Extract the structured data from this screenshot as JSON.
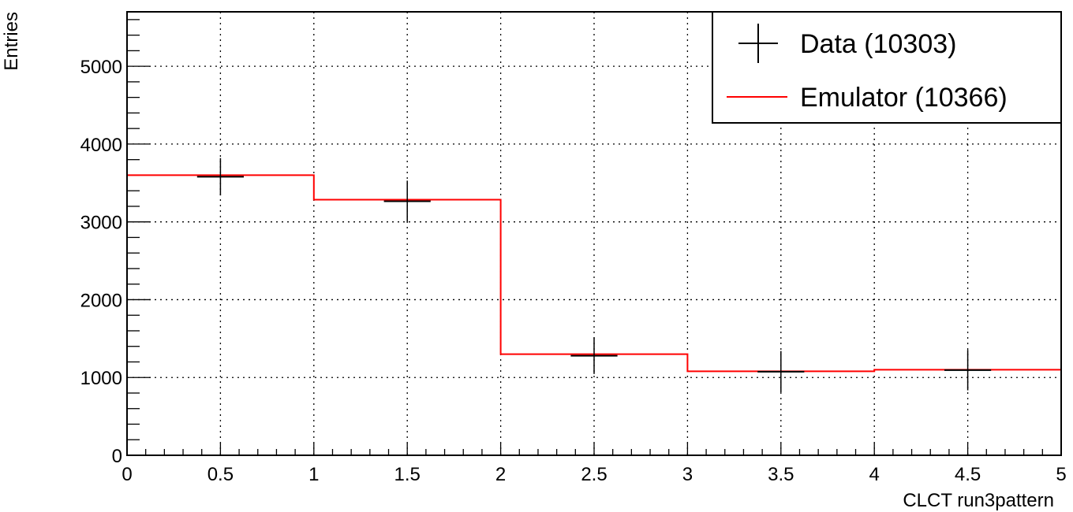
{
  "chart_data": {
    "type": "histogram",
    "xlabel": "CLCT run3pattern",
    "ylabel": "Entries",
    "xlim": [
      0,
      5
    ],
    "ylim": [
      0,
      5700
    ],
    "grid": true,
    "legend_position": "top-right",
    "x_ticks": [
      0,
      0.5,
      1,
      1.5,
      2,
      2.5,
      3,
      3.5,
      4,
      4.5,
      5
    ],
    "x_tick_labels": [
      "0",
      "0.5",
      "1",
      "1.5",
      "2",
      "2.5",
      "3",
      "3.5",
      "4",
      "4.5",
      "5"
    ],
    "y_ticks": [
      0,
      1000,
      2000,
      3000,
      4000,
      5000
    ],
    "y_tick_labels": [
      "0",
      "1000",
      "2000",
      "3000",
      "4000",
      "5000"
    ],
    "bin_edges": [
      0,
      1,
      2,
      3,
      4,
      5
    ],
    "series": [
      {
        "name": "Data (10303)",
        "style": "points-with-errors",
        "color": "#000000",
        "x": [
          0.5,
          1.5,
          2.5,
          3.5,
          4.5
        ],
        "values": [
          3580,
          3265,
          1280,
          1075,
          1095
        ],
        "errors": [
          240,
          265,
          235,
          265,
          260
        ]
      },
      {
        "name": "Emulator (10366)",
        "style": "step",
        "color": "#ff0000",
        "values": [
          3600,
          3285,
          1300,
          1080,
          1100
        ]
      }
    ]
  }
}
